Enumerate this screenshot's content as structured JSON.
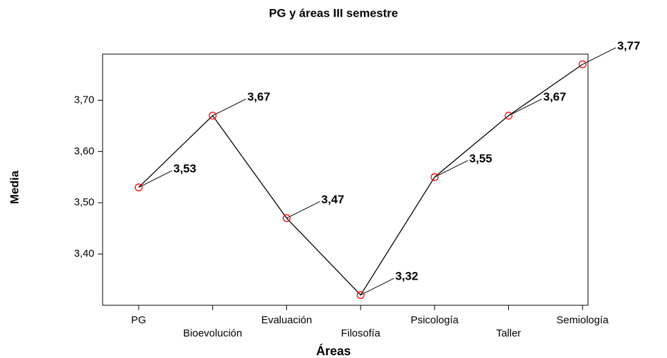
{
  "chart_data": {
    "type": "line",
    "title": "PG y áreas III semestre",
    "x_label": "Áreas",
    "y_label": "Media",
    "categories": [
      "PG",
      "Bioevolución",
      "Evaluación",
      "Filosofía",
      "Psicología",
      "Taller",
      "Semiología"
    ],
    "values": [
      3.53,
      3.67,
      3.47,
      3.32,
      3.55,
      3.67,
      3.77
    ],
    "value_labels": [
      "3,53",
      "3,67",
      "3,47",
      "3,32",
      "3,55",
      "3,67",
      "3,77"
    ],
    "color": "#000000",
    "marker_color": "#ff0000",
    "ylim": [
      3.3,
      3.79
    ],
    "yticks": [
      {
        "value": 3.4,
        "label": "3,40"
      },
      {
        "value": 3.5,
        "label": "3,50"
      },
      {
        "value": 3.6,
        "label": "3,60"
      },
      {
        "value": 3.7,
        "label": "3,70"
      }
    ],
    "grid": false
  }
}
